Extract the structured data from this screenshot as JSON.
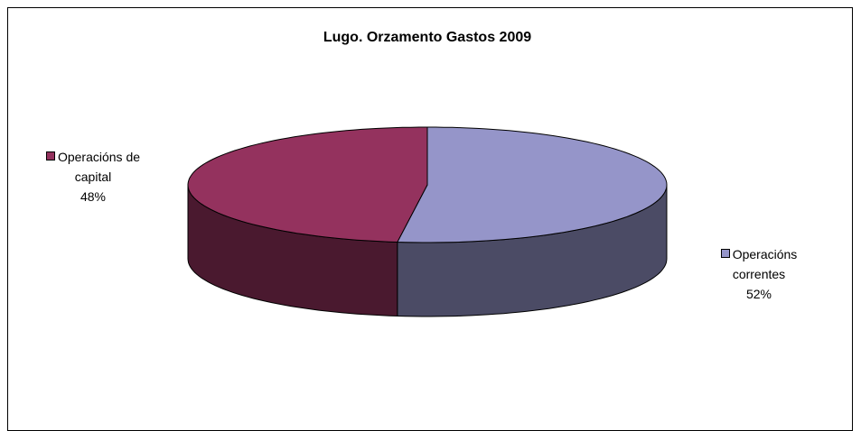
{
  "chart_data": {
    "type": "pie3d",
    "title": "Lugo. Orzamento Gastos 2009",
    "categories": [
      "Operacións correntes",
      "Operacións de capital"
    ],
    "values": [
      52,
      48
    ],
    "value_labels": [
      "52%",
      "48%"
    ],
    "colors": [
      "#9595c9",
      "#94325e"
    ]
  }
}
